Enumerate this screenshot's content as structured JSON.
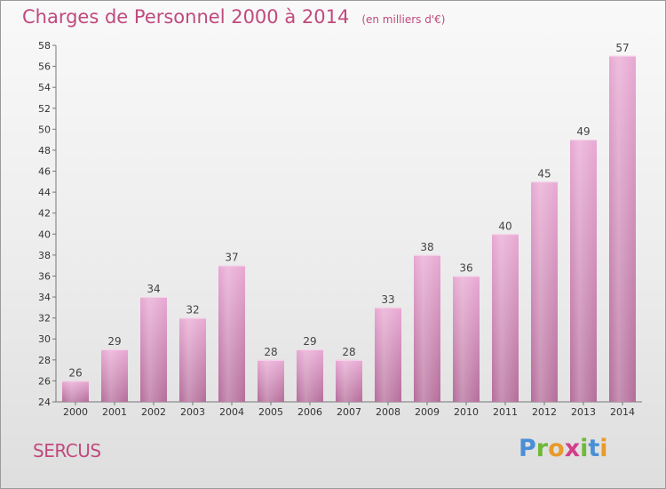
{
  "title": "Charges de Personnel 2000 à 2014",
  "subtitle": "(en milliers d'€)",
  "town": "SERCUS",
  "logo": {
    "letters": [
      "P",
      "r",
      "o",
      "x",
      "i",
      "t",
      "i"
    ],
    "colors": [
      "#4a8fd6",
      "#6fb93a",
      "#e89a2b",
      "#d43d8a",
      "#6fb93a",
      "#4a8fd6",
      "#e89a2b"
    ]
  },
  "colors": {
    "bar_top": "#e8a9d3",
    "bar_bottom": "#b46d9a",
    "text": "#c04a7e"
  },
  "chart_data": {
    "type": "bar",
    "categories": [
      "2000",
      "2001",
      "2002",
      "2003",
      "2004",
      "2005",
      "2006",
      "2007",
      "2008",
      "2009",
      "2010",
      "2011",
      "2012",
      "2013",
      "2014"
    ],
    "values": [
      26,
      29,
      34,
      32,
      37,
      28,
      29,
      28,
      33,
      38,
      36,
      40,
      45,
      49,
      57
    ],
    "ylim": [
      24,
      58
    ],
    "yticks": [
      24,
      26,
      28,
      30,
      32,
      34,
      36,
      38,
      40,
      42,
      44,
      46,
      48,
      50,
      52,
      54,
      56,
      58
    ],
    "grid": false,
    "title": "Charges de Personnel 2000 à 2014"
  }
}
